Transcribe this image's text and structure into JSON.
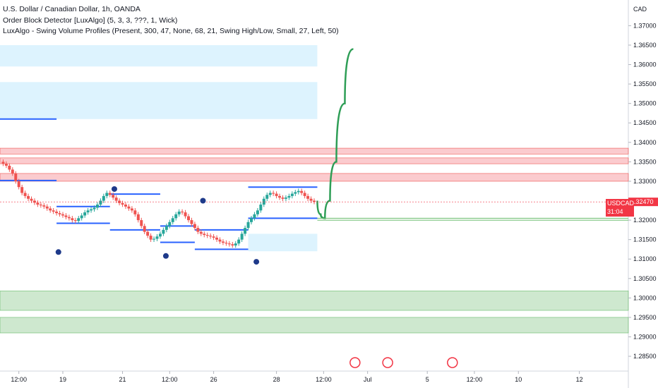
{
  "header": {
    "symbol_line": "U.S. Dollar / Canadian Dollar, 1h, OANDA",
    "indicator_1": "Order Block Detector [LuxAlgo] (5, 3, 3, ???, 1, Wick)",
    "indicator_2": "LuxAlgo - Swing Volume Profiles (Present, 300, 47, None, 68, 21, Swing High/Low, Small, 27, Left, 50)"
  },
  "price_axis": {
    "currency": "CAD",
    "symbol_tag": "USDCAD",
    "last_price": "1.32470",
    "countdown": "31:04"
  },
  "colors": {
    "up_candle": "#26a69a",
    "down_candle": "#ef5350",
    "level_line": "#2962ff",
    "red_zone": "#f7a1a6",
    "green_zone": "#a5d6a7",
    "blue_zone": "#b3e5fc",
    "projection": "#2e9e56",
    "marker": "#1e3a8a",
    "price_tag": "#f23645"
  },
  "chart_data": {
    "type": "candlestick",
    "symbol": "USDCAD",
    "timeframe": "1h",
    "y_ticks": [
      1.285,
      1.29,
      1.295,
      1.3,
      1.305,
      1.31,
      1.315,
      1.32,
      1.325,
      1.33,
      1.335,
      1.34,
      1.345,
      1.35,
      1.355,
      1.36,
      1.365,
      1.37
    ],
    "y_tick_labels": [
      "1.28500",
      "1.29000",
      "1.29500",
      "1.30000",
      "1.30500",
      "1.31000",
      "1.31500",
      "1.32000",
      "1.32500",
      "1.33000",
      "1.33500",
      "1.34000",
      "1.34500",
      "1.35000",
      "1.35500",
      "1.36000",
      "1.36500",
      "1.37000"
    ],
    "x_labels": [
      "12:00",
      "19",
      "21",
      "12:00",
      "26",
      "28",
      "12:00",
      "Jul",
      "5",
      "12:00",
      "10",
      "12"
    ],
    "ylim": [
      1.2812,
      1.3766
    ],
    "last_price": 1.3247,
    "price_path": [
      1.335,
      1.3345,
      1.334,
      1.333,
      1.332,
      1.33,
      1.3285,
      1.327,
      1.3262,
      1.3255,
      1.325,
      1.3245,
      1.324,
      1.3238,
      1.3235,
      1.323,
      1.3225,
      1.3222,
      1.3218,
      1.3215,
      1.3212,
      1.3208,
      1.3205,
      1.32,
      1.3198,
      1.3205,
      1.3212,
      1.322,
      1.3225,
      1.3228,
      1.3232,
      1.324,
      1.325,
      1.3262,
      1.327,
      1.3265,
      1.3258,
      1.325,
      1.3244,
      1.324,
      1.3235,
      1.323,
      1.3225,
      1.3215,
      1.32,
      1.3185,
      1.317,
      1.316,
      1.315,
      1.3152,
      1.3158,
      1.3165,
      1.3175,
      1.3185,
      1.3195,
      1.3205,
      1.3215,
      1.3222,
      1.322,
      1.321,
      1.32,
      1.319,
      1.318,
      1.317,
      1.3165,
      1.3162,
      1.316,
      1.3158,
      1.3155,
      1.315,
      1.3145,
      1.3142,
      1.314,
      1.3138,
      1.3135,
      1.314,
      1.315,
      1.3165,
      1.318,
      1.3195,
      1.3205,
      1.3215,
      1.3225,
      1.324,
      1.3255,
      1.3265,
      1.327,
      1.3268,
      1.3262,
      1.3258,
      1.3255,
      1.3258,
      1.3262,
      1.3268,
      1.3272,
      1.3275,
      1.327,
      1.3262,
      1.3255,
      1.325,
      1.3247
    ],
    "projection_path": [
      [
        1.325,
        0
      ],
      [
        1.3215,
        8
      ],
      [
        1.3205,
        18
      ],
      [
        1.325,
        30
      ],
      [
        1.335,
        45
      ],
      [
        1.35,
        65
      ],
      [
        1.364,
        85
      ]
    ],
    "zones": [
      {
        "kind": "blue",
        "top": 1.365,
        "bottom": 1.3595,
        "from": 0.0,
        "to": 0.505
      },
      {
        "kind": "blue",
        "top": 1.3555,
        "bottom": 1.346,
        "from": 0.0,
        "to": 0.505
      },
      {
        "kind": "red",
        "top": 1.3385,
        "bottom": 1.337,
        "from": 0.0,
        "to": 1.0
      },
      {
        "kind": "red",
        "top": 1.336,
        "bottom": 1.3345,
        "from": 0.0,
        "to": 1.0
      },
      {
        "kind": "red",
        "top": 1.332,
        "bottom": 1.33,
        "from": 0.0,
        "to": 1.0
      },
      {
        "kind": "blue",
        "top": 1.3165,
        "bottom": 1.312,
        "from": 0.395,
        "to": 0.505
      },
      {
        "kind": "green",
        "top": 1.3018,
        "bottom": 1.2968,
        "from": 0.0,
        "to": 1.0
      },
      {
        "kind": "green",
        "top": 1.295,
        "bottom": 1.291,
        "from": 0.0,
        "to": 1.0
      }
    ],
    "levels": [
      {
        "y": 1.346,
        "from": 0.0,
        "to": 0.09
      },
      {
        "y": 1.3302,
        "from": 0.0,
        "to": 0.09
      },
      {
        "y": 1.3235,
        "from": 0.09,
        "to": 0.175
      },
      {
        "y": 1.3192,
        "from": 0.09,
        "to": 0.175
      },
      {
        "y": 1.3267,
        "from": 0.175,
        "to": 0.255
      },
      {
        "y": 1.3175,
        "from": 0.175,
        "to": 0.255
      },
      {
        "y": 1.3143,
        "from": 0.255,
        "to": 0.31
      },
      {
        "y": 1.3185,
        "from": 0.255,
        "to": 0.31
      },
      {
        "y": 1.3125,
        "from": 0.31,
        "to": 0.395
      },
      {
        "y": 1.3175,
        "from": 0.31,
        "to": 0.395
      },
      {
        "y": 1.3285,
        "from": 0.395,
        "to": 0.505
      },
      {
        "y": 1.3205,
        "from": 0.395,
        "to": 0.505
      }
    ]
  }
}
